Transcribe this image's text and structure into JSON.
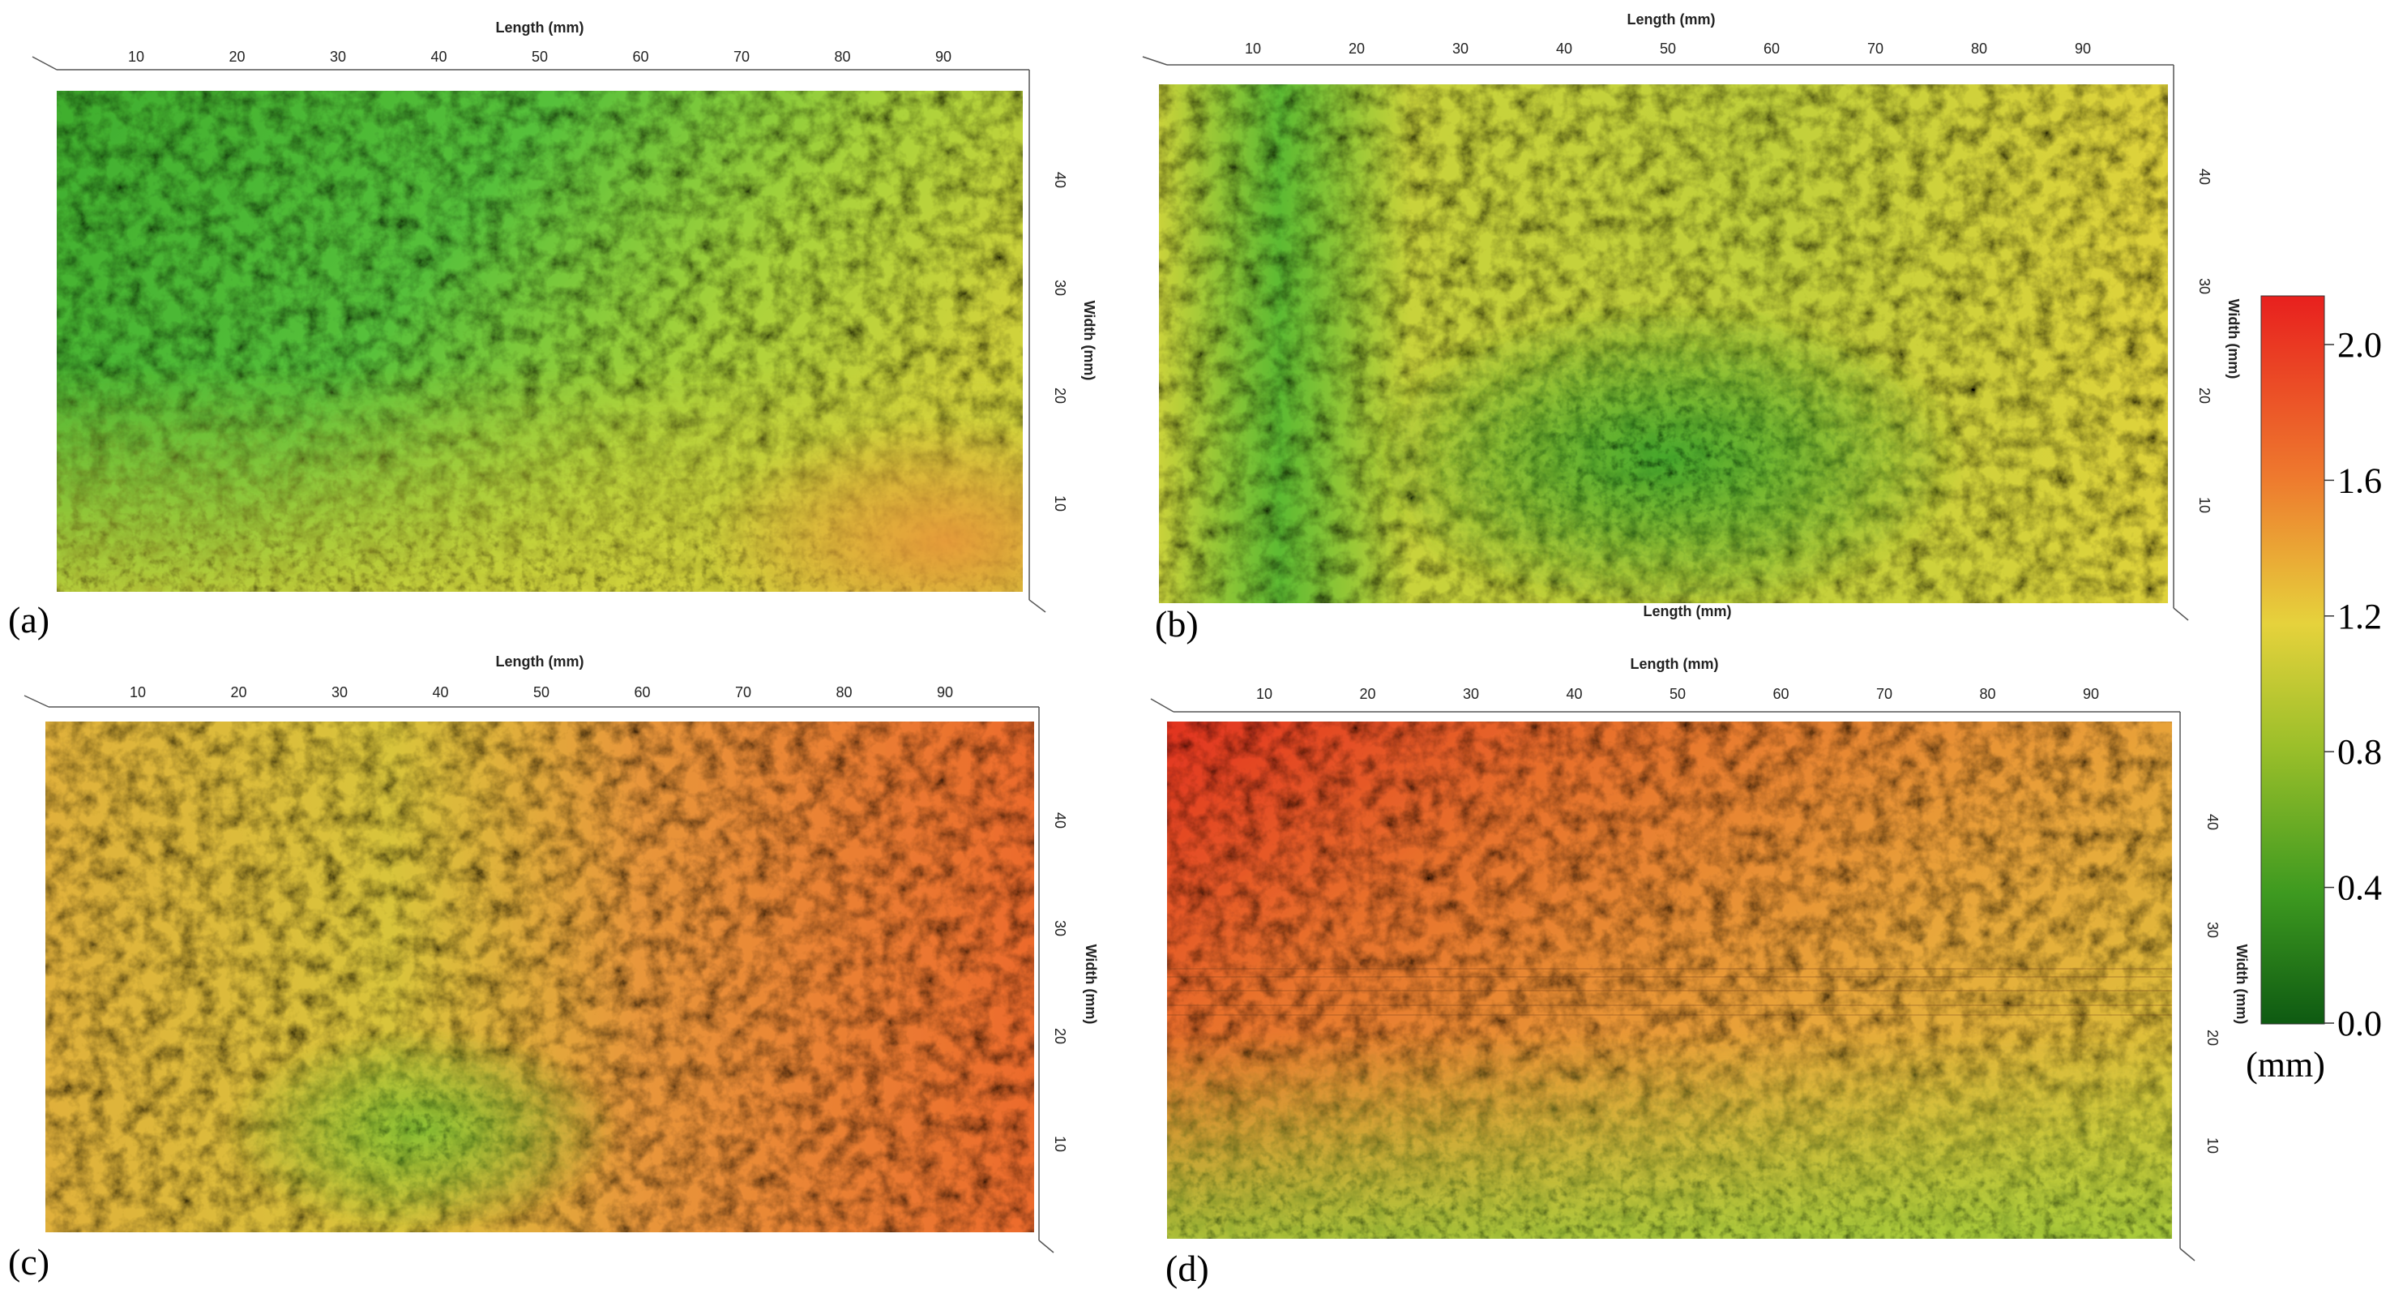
{
  "figure": {
    "panels": [
      {
        "id": "a",
        "letter": "(a)",
        "top_axis_label": "Length (mm)",
        "bottom_axis_label": "",
        "side_axis_label": "Width (mm)",
        "length_ticks": [
          "10",
          "20",
          "30",
          "40",
          "50",
          "60",
          "70",
          "80",
          "90"
        ],
        "width_ticks": [
          "40",
          "30",
          "20",
          "10"
        ],
        "color_regime": "green-yellow-orange",
        "base_color": "#5cc03a",
        "accent_color": "#d9d236"
      },
      {
        "id": "b",
        "letter": "(b)",
        "top_axis_label": "Length (mm)",
        "bottom_axis_label": "Length (mm)",
        "side_axis_label": "Width (mm)",
        "length_ticks": [
          "10",
          "20",
          "30",
          "40",
          "50",
          "60",
          "70",
          "80",
          "90"
        ],
        "width_ticks": [
          "40",
          "30",
          "20",
          "10"
        ],
        "color_regime": "yellow-green",
        "base_color": "#b9d23a",
        "accent_color": "#e6c83c"
      },
      {
        "id": "c",
        "letter": "(c)",
        "top_axis_label": "Length (mm)",
        "bottom_axis_label": "",
        "side_axis_label": "Width (mm)",
        "length_ticks": [
          "10",
          "20",
          "30",
          "40",
          "50",
          "60",
          "70",
          "80",
          "90"
        ],
        "width_ticks": [
          "40",
          "30",
          "20",
          "10"
        ],
        "color_regime": "yellow-orange",
        "base_color": "#d9c03a",
        "accent_color": "#ec7a2e"
      },
      {
        "id": "d",
        "letter": "(d)",
        "top_axis_label": "Length (mm)",
        "bottom_axis_label": "",
        "side_axis_label": "Width (mm)",
        "length_ticks": [
          "10",
          "20",
          "30",
          "40",
          "50",
          "60",
          "70",
          "80",
          "90"
        ],
        "width_ticks": [
          "40",
          "30",
          "20",
          "10"
        ],
        "color_regime": "orange-red",
        "base_color": "#e88a32",
        "accent_color": "#e23a22"
      }
    ],
    "colorbar": {
      "ticks": [
        "2.0",
        "1.6",
        "1.2",
        "0.8",
        "0.4",
        "0.0"
      ],
      "unit": "(mm)",
      "stops": [
        "#e8201e",
        "#ee7a2e",
        "#e6d23c",
        "#9bbf2a",
        "#3e9a20",
        "#0e5a12"
      ]
    }
  }
}
